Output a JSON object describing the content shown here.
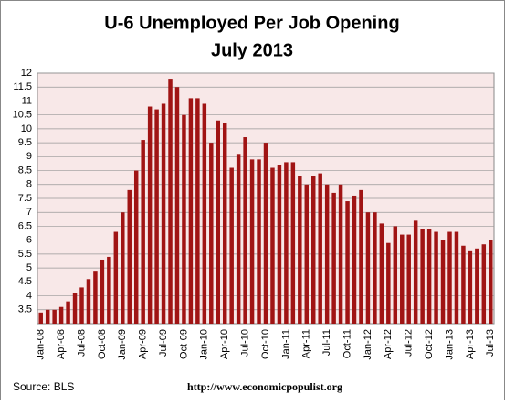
{
  "chart_data": {
    "type": "bar",
    "title": "U-6 Unemployed Per Job Opening",
    "subtitle": "July 2013",
    "source": "Source:  BLS",
    "url": "http://www.economicpopulist.org",
    "categories": [
      "Jan-08",
      null,
      null,
      "Apr-08",
      null,
      null,
      "Jul-08",
      null,
      null,
      "Oct-08",
      null,
      null,
      "Jan-09",
      null,
      null,
      "Apr-09",
      null,
      null,
      "Jul-09",
      null,
      null,
      "Oct-09",
      null,
      null,
      "Jan-10",
      null,
      null,
      "Apr-10",
      null,
      null,
      "Jul-10",
      null,
      null,
      "Oct-10",
      null,
      null,
      "Jan-11",
      null,
      null,
      "Apr-11",
      null,
      null,
      "Jul-11",
      null,
      null,
      "Oct-11",
      null,
      null,
      "Jan-12",
      null,
      null,
      "Apr-12",
      null,
      null,
      "Jul-12",
      null,
      null,
      "Oct-12",
      null,
      null,
      "Jan-13",
      null,
      null,
      "Apr-13",
      null,
      null,
      "Jul-13"
    ],
    "values": [
      3.4,
      3.5,
      3.5,
      3.6,
      3.8,
      4.1,
      4.3,
      4.6,
      4.9,
      5.3,
      5.4,
      6.3,
      7.0,
      7.8,
      8.5,
      9.6,
      10.8,
      10.7,
      10.9,
      11.8,
      11.5,
      10.5,
      11.1,
      11.1,
      10.9,
      9.5,
      10.3,
      10.2,
      8.6,
      9.1,
      9.7,
      8.9,
      8.9,
      9.5,
      8.6,
      8.7,
      8.8,
      8.8,
      8.3,
      8.0,
      8.3,
      8.4,
      8.0,
      7.7,
      8.0,
      7.4,
      7.6,
      7.8,
      7.0,
      7.0,
      6.6,
      5.9,
      6.5,
      6.2,
      6.2,
      6.7,
      6.4,
      6.4,
      6.3,
      6.0,
      6.3,
      6.3,
      5.8,
      5.6,
      5.7,
      5.85,
      6.0
    ],
    "color": "#a01414",
    "ylim": [
      3,
      12
    ],
    "yticks": [
      3.5,
      4,
      4.5,
      5,
      5.5,
      6,
      6.5,
      7,
      7.5,
      8,
      8.5,
      9,
      9.5,
      10,
      10.5,
      11,
      11.5,
      12
    ],
    "grid": true
  }
}
